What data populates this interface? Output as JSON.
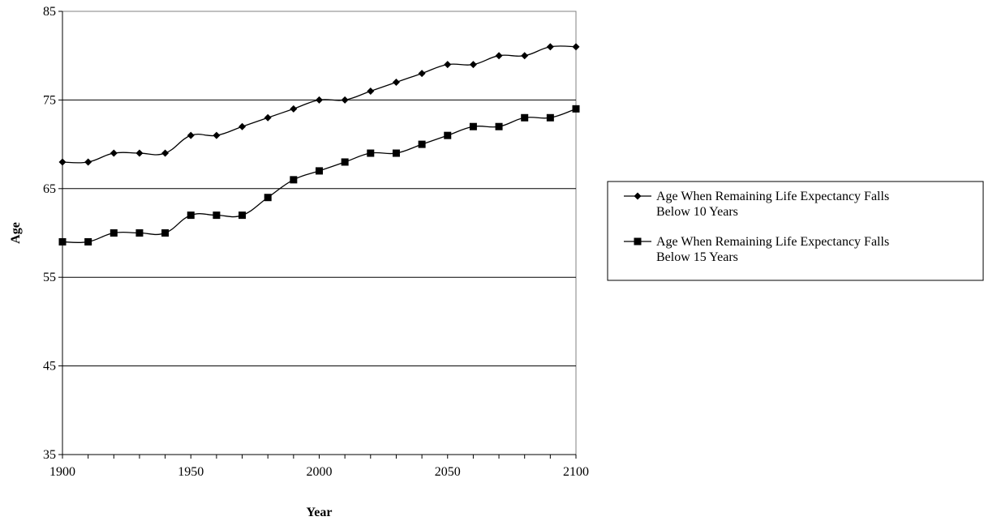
{
  "chart_data": {
    "type": "line",
    "title": "",
    "xlabel": "Year",
    "ylabel": "Age",
    "xlim": [
      1900,
      2100
    ],
    "ylim": [
      35,
      85
    ],
    "xticks": [
      1900,
      1950,
      2000,
      2050,
      2100
    ],
    "yticks": [
      35,
      45,
      55,
      65,
      75,
      85
    ],
    "grid": "horizontal",
    "legend_position": "right",
    "x": [
      1900,
      1910,
      1920,
      1930,
      1940,
      1950,
      1960,
      1970,
      1980,
      1990,
      2000,
      2010,
      2020,
      2030,
      2040,
      2050,
      2060,
      2070,
      2080,
      2090,
      2100
    ],
    "series": [
      {
        "name": "Age When Remaining Life Expectancy Falls Below 10 Years",
        "legend_lines": [
          "Age When Remaining Life Expectancy Falls",
          "Below 10 Years"
        ],
        "marker": "diamond",
        "color": "#000000",
        "values": [
          68,
          68,
          69,
          69,
          69,
          71,
          71,
          72,
          73,
          74,
          75,
          75,
          76,
          77,
          78,
          79,
          79,
          80,
          80,
          81,
          81
        ]
      },
      {
        "name": "Age When Remaining Life Expectancy Falls Below 15 Years",
        "legend_lines": [
          "Age When Remaining Life Expectancy Falls",
          "Below 15 Years"
        ],
        "marker": "square",
        "color": "#000000",
        "values": [
          59,
          59,
          60,
          60,
          60,
          62,
          62,
          62,
          64,
          66,
          67,
          68,
          69,
          69,
          70,
          71,
          72,
          72,
          73,
          73,
          74
        ]
      }
    ]
  }
}
